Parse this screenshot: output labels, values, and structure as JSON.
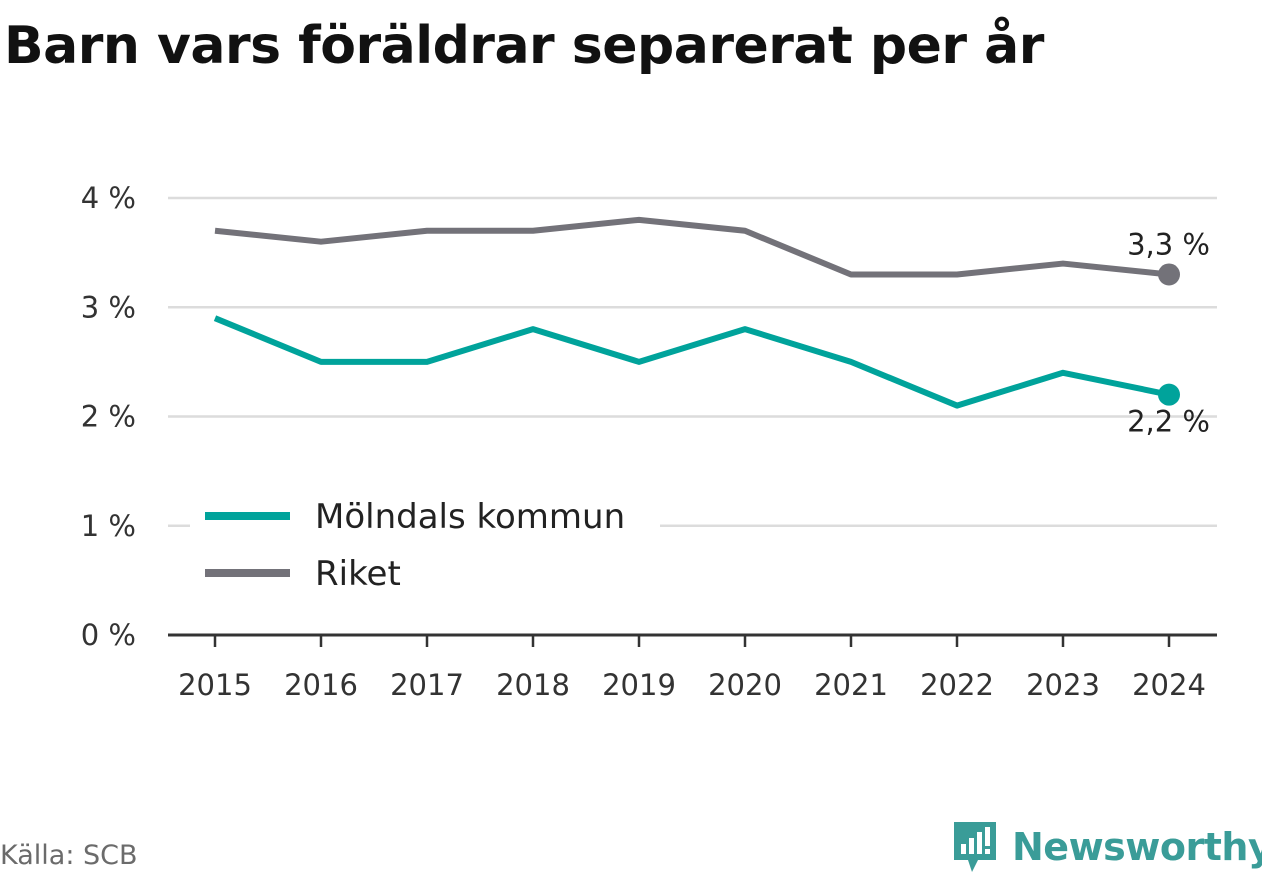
{
  "title": "Barn vars föräldrar separerat per år",
  "source": "Källa: SCB",
  "brand": {
    "name": "Newsworthy",
    "icon": "newsworthy-logo-icon"
  },
  "colors": {
    "moln": "#00a39b",
    "riket": "#737279",
    "grid": "#dcdcdc",
    "axis": "#333333",
    "brand": "#3a9c98"
  },
  "chart_data": {
    "type": "line",
    "x": [
      "2015",
      "2016",
      "2017",
      "2018",
      "2019",
      "2020",
      "2021",
      "2022",
      "2023",
      "2024"
    ],
    "series": [
      {
        "name": "Mölndals kommun",
        "values": [
          2.9,
          2.5,
          2.5,
          2.8,
          2.5,
          2.8,
          2.5,
          2.1,
          2.4,
          2.2
        ],
        "end_label": "2,2 %"
      },
      {
        "name": "Riket",
        "values": [
          3.7,
          3.6,
          3.7,
          3.7,
          3.8,
          3.7,
          3.3,
          3.3,
          3.4,
          3.3
        ],
        "end_label": "3,3 %"
      }
    ],
    "ylim": [
      0,
      4
    ],
    "yticks": [
      0,
      1,
      2,
      3,
      4
    ],
    "ytick_labels": [
      "0 %",
      "1 %",
      "2 %",
      "3 %",
      "4 %"
    ],
    "grid": true,
    "legend": "bottom-left"
  }
}
